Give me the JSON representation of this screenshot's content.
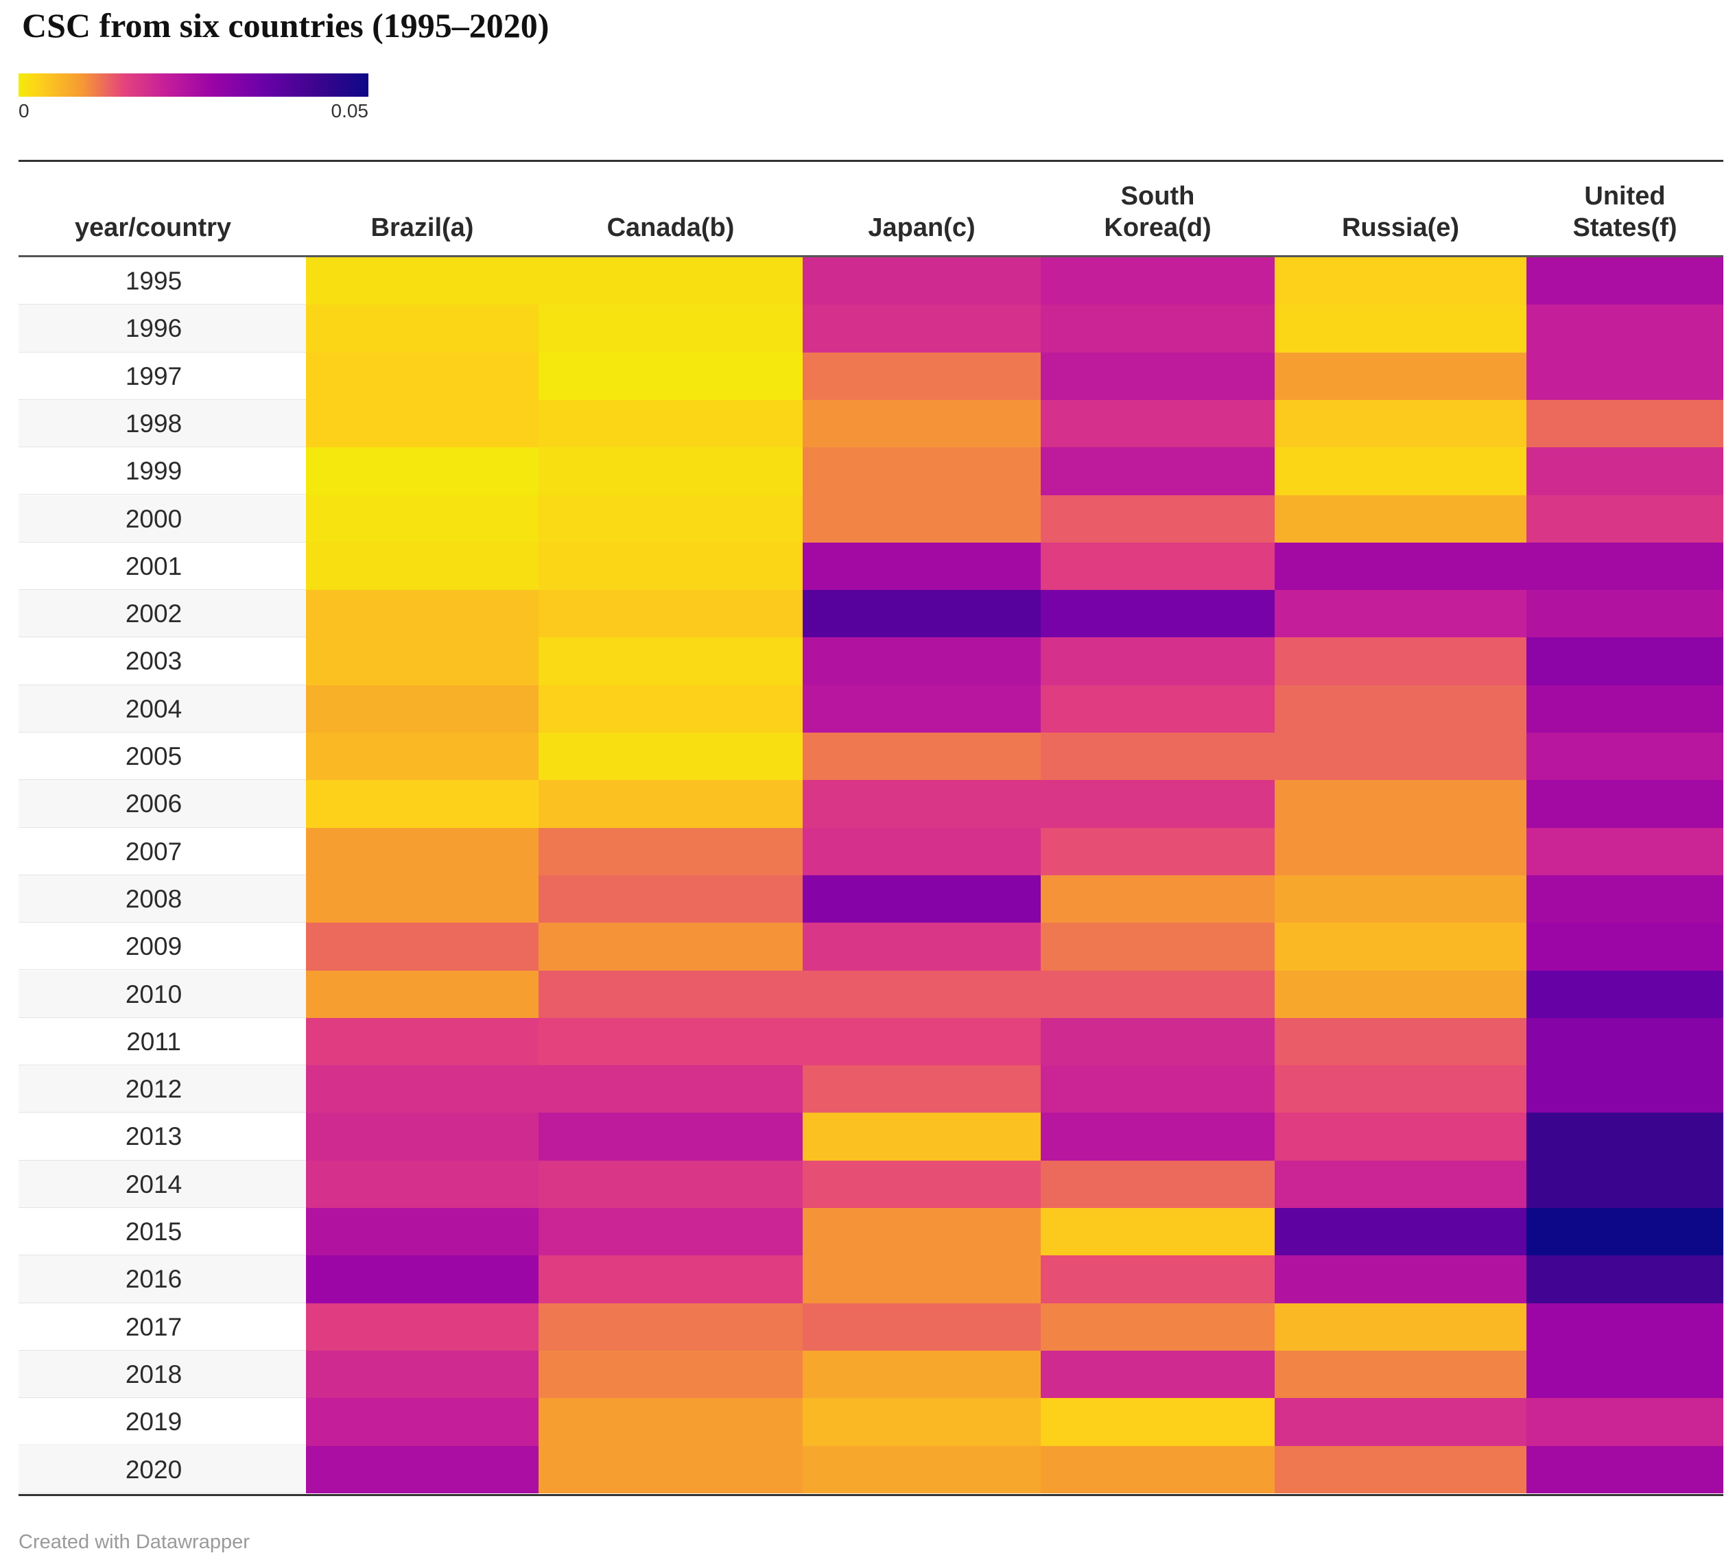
{
  "chart_data": {
    "type": "heatmap",
    "title": "CSC from six countries (1995–2020)",
    "corner_label": "year/country",
    "columns": [
      "Brazil(a)",
      "Canada(b)",
      "Japan(c)",
      "South\nKorea(d)",
      "Russia(e)",
      "United\nStates(f)"
    ],
    "rows": [
      "1995",
      "1996",
      "1997",
      "1998",
      "1999",
      "2000",
      "2001",
      "2002",
      "2003",
      "2004",
      "2005",
      "2006",
      "2007",
      "2008",
      "2009",
      "2010",
      "2011",
      "2012",
      "2013",
      "2014",
      "2015",
      "2016",
      "2017",
      "2018",
      "2019",
      "2020"
    ],
    "color_scale": {
      "min": 0,
      "max": 0.05,
      "min_label": "0",
      "max_label": "0.05",
      "stops": [
        "#f3ec0a",
        "#fdd01a",
        "#f69a33",
        "#e5447c",
        "#c51e9a",
        "#9b05a6",
        "#6a01a8",
        "#3d048f",
        "#0d0887"
      ]
    },
    "values": [
      [
        0.003,
        0.003,
        0.023,
        0.025,
        0.006,
        0.029
      ],
      [
        0.005,
        0.002,
        0.022,
        0.024,
        0.005,
        0.025
      ],
      [
        0.006,
        0.001,
        0.015,
        0.026,
        0.012,
        0.025
      ],
      [
        0.006,
        0.005,
        0.013,
        0.022,
        0.007,
        0.016
      ],
      [
        0.001,
        0.003,
        0.014,
        0.026,
        0.005,
        0.023
      ],
      [
        0.002,
        0.004,
        0.014,
        0.017,
        0.01,
        0.021
      ],
      [
        0.003,
        0.005,
        0.03,
        0.02,
        0.03,
        0.03
      ],
      [
        0.008,
        0.007,
        0.04,
        0.036,
        0.025,
        0.028
      ],
      [
        0.008,
        0.004,
        0.028,
        0.022,
        0.017,
        0.033
      ],
      [
        0.01,
        0.006,
        0.027,
        0.02,
        0.016,
        0.03
      ],
      [
        0.009,
        0.003,
        0.015,
        0.016,
        0.016,
        0.027
      ],
      [
        0.006,
        0.008,
        0.021,
        0.021,
        0.013,
        0.03
      ],
      [
        0.012,
        0.015,
        0.022,
        0.018,
        0.013,
        0.024
      ],
      [
        0.012,
        0.016,
        0.034,
        0.013,
        0.011,
        0.03
      ],
      [
        0.016,
        0.013,
        0.021,
        0.015,
        0.009,
        0.031
      ],
      [
        0.012,
        0.017,
        0.017,
        0.017,
        0.011,
        0.038
      ],
      [
        0.02,
        0.019,
        0.019,
        0.023,
        0.017,
        0.034
      ],
      [
        0.022,
        0.022,
        0.017,
        0.024,
        0.018,
        0.034
      ],
      [
        0.023,
        0.026,
        0.008,
        0.027,
        0.02,
        0.044
      ],
      [
        0.022,
        0.021,
        0.018,
        0.016,
        0.024,
        0.044
      ],
      [
        0.028,
        0.024,
        0.013,
        0.007,
        0.039,
        0.05
      ],
      [
        0.031,
        0.02,
        0.013,
        0.018,
        0.028,
        0.043
      ],
      [
        0.02,
        0.015,
        0.016,
        0.014,
        0.009,
        0.031
      ],
      [
        0.023,
        0.014,
        0.011,
        0.023,
        0.014,
        0.031
      ],
      [
        0.025,
        0.012,
        0.009,
        0.006,
        0.022,
        0.024
      ],
      [
        0.029,
        0.012,
        0.011,
        0.012,
        0.015,
        0.03
      ]
    ]
  },
  "footer": {
    "credit": "Created with Datawrapper"
  }
}
